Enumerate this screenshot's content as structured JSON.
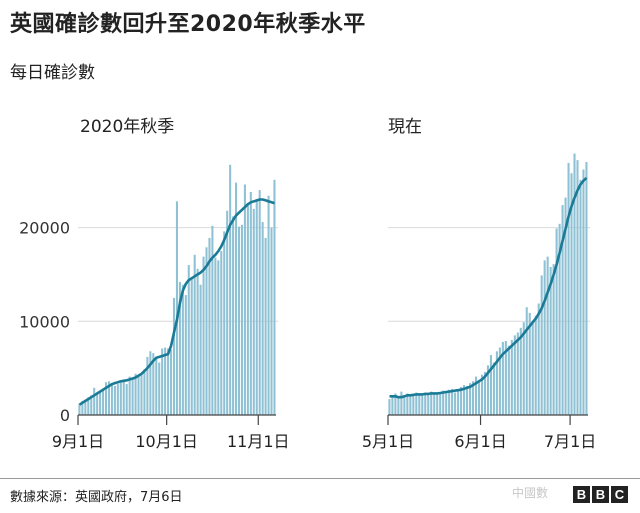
{
  "title": "英國確診數回升至2020年秋季水平",
  "subtitle": "每日確診數",
  "source": "數據來源：英國政府，7月6日",
  "brand": "BBC",
  "brand_letters": [
    "B",
    "B",
    "C"
  ],
  "watermark": "中國數",
  "colors": {
    "bar": "#8fc1d4",
    "line": "#1b7a96",
    "axis": "#444444",
    "grid": "#d9d9d9"
  },
  "chart_data": [
    {
      "type": "bar",
      "panel_title": "2020年秋季",
      "y_ticks": [
        0,
        10000,
        20000
      ],
      "y_tick_labels": [
        "0",
        "10000",
        "20000"
      ],
      "ylim": [
        0,
        27000
      ],
      "x_ticks": [
        "9月1日",
        "10月1日",
        "11月1日"
      ],
      "x_tick_days": [
        0,
        30,
        61
      ],
      "day_count": 67,
      "series": [
        {
          "kind": "daily",
          "values": [
            1200,
            1500,
            1600,
            1900,
            2100,
            2900,
            2400,
            2600,
            2700,
            3500,
            3600,
            3300,
            3100,
            3300,
            3700,
            3800,
            3300,
            4100,
            3900,
            4400,
            4200,
            4300,
            4900,
            6200,
            6800,
            6600,
            6000,
            5600,
            7100,
            7200,
            7100,
            7000,
            12500,
            22800,
            14200,
            13900,
            12800,
            16000,
            14700,
            17100,
            15600,
            13900,
            16900,
            17900,
            18900,
            20200,
            16800,
            16500,
            17500,
            19600,
            21800,
            26700,
            21200,
            24800,
            20100,
            20300,
            24600,
            22600,
            23800,
            22000,
            22900,
            24000,
            20600,
            18900,
            23400,
            20000,
            25100
          ]
        },
        {
          "kind": "rolling-average",
          "values": [
            1100,
            1300,
            1500,
            1700,
            1900,
            2100,
            2300,
            2500,
            2700,
            2900,
            3100,
            3300,
            3400,
            3500,
            3600,
            3650,
            3700,
            3800,
            3900,
            4000,
            4200,
            4400,
            4700,
            5000,
            5400,
            5800,
            6100,
            6200,
            6300,
            6400,
            6500,
            7400,
            8800,
            10200,
            12000,
            13300,
            14000,
            14400,
            14600,
            14800,
            15000,
            15200,
            15500,
            15900,
            16400,
            16800,
            17100,
            17500,
            18000,
            18700,
            19500,
            20300,
            20800,
            21300,
            21600,
            21900,
            22200,
            22500,
            22700,
            22800,
            22900,
            23000,
            23000,
            22900,
            22800,
            22700,
            22600
          ]
        }
      ]
    },
    {
      "type": "bar",
      "panel_title": "現在",
      "y_ticks": [
        0,
        10000,
        20000
      ],
      "ylim": [
        0,
        27000
      ],
      "x_ticks": [
        "5月1日",
        "6月1日",
        "7月1日"
      ],
      "x_tick_days": [
        0,
        31,
        61
      ],
      "day_count": 67,
      "series": [
        {
          "kind": "daily",
          "values": [
            1700,
            2100,
            2300,
            2000,
            2500,
            1900,
            2300,
            2200,
            2300,
            2400,
            2100,
            2300,
            2400,
            2200,
            2500,
            2300,
            2200,
            2400,
            2600,
            2500,
            2700,
            2800,
            2400,
            2600,
            3000,
            3200,
            3100,
            3400,
            3600,
            4100,
            3500,
            4300,
            4600,
            5300,
            6400,
            5600,
            6800,
            7200,
            7800,
            7900,
            7400,
            8000,
            8500,
            8800,
            9300,
            9900,
            11500,
            10900,
            9800,
            10600,
            11900,
            14900,
            16500,
            16900,
            15800,
            16100,
            19900,
            20400,
            22400,
            23200,
            26900,
            25800,
            27900,
            27200,
            25100,
            26200,
            27000
          ]
        },
        {
          "kind": "rolling-average",
          "values": [
            2000,
            2000,
            2000,
            1900,
            1900,
            2000,
            2100,
            2100,
            2150,
            2200,
            2200,
            2200,
            2250,
            2250,
            2300,
            2300,
            2300,
            2350,
            2400,
            2450,
            2500,
            2550,
            2600,
            2650,
            2700,
            2800,
            2900,
            3000,
            3200,
            3400,
            3600,
            3800,
            4100,
            4500,
            4900,
            5300,
            5700,
            6100,
            6500,
            6800,
            7100,
            7400,
            7700,
            8000,
            8300,
            8700,
            9100,
            9500,
            9900,
            10300,
            10800,
            11400,
            12200,
            13100,
            14000,
            15000,
            16100,
            17300,
            18600,
            19900,
            21200,
            22300,
            23200,
            24000,
            24600,
            25000,
            25300
          ]
        }
      ]
    }
  ]
}
